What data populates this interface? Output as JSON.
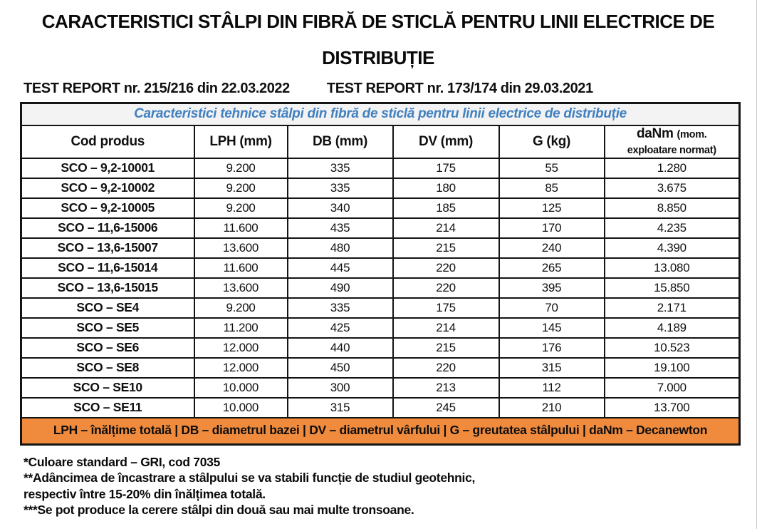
{
  "header": {
    "title_line1": "CARACTERISTICI STÂLPI DIN FIBRĂ DE STICLĂ PENTRU LINII ELECTRICE DE",
    "title_line2": "DISTRIBUȚIE",
    "report_left": "TEST REPORT nr. 215/216 din 22.03.2022",
    "report_right": "TEST REPORT nr. 173/174 din 29.03.2021"
  },
  "table": {
    "caption": "Caracteristici tehnice stâlpi din fibră de sticlă pentru linii electrice de distribuție",
    "columns": [
      "Cod produs",
      "LPH (mm)",
      "DB (mm)",
      "DV (mm)",
      "G (kg)"
    ],
    "danm_header": {
      "main": "daNm",
      "unit_line1": "(mom.",
      "unit_line2": "exploatare normat)"
    },
    "rows": [
      [
        "SCO – 9,2-10001",
        "9.200",
        "335",
        "175",
        "55",
        "1.280"
      ],
      [
        "SCO – 9,2-10002",
        "9.200",
        "335",
        "180",
        "85",
        "3.675"
      ],
      [
        "SCO – 9,2-10005",
        "9.200",
        "340",
        "185",
        "125",
        "8.850"
      ],
      [
        "SCO – 11,6-15006",
        "11.600",
        "435",
        "214",
        "170",
        "4.235"
      ],
      [
        "SCO – 13,6-15007",
        "13.600",
        "480",
        "215",
        "240",
        "4.390"
      ],
      [
        "SCO – 11,6-15014",
        "11.600",
        "445",
        "220",
        "265",
        "13.080"
      ],
      [
        "SCO – 13,6-15015",
        "13.600",
        "490",
        "220",
        "395",
        "15.850"
      ],
      [
        "SCO – SE4",
        "9.200",
        "335",
        "175",
        "70",
        "2.171"
      ],
      [
        "SCO – SE5",
        "11.200",
        "425",
        "214",
        "145",
        "4.189"
      ],
      [
        "SCO – SE6",
        "12.000",
        "440",
        "215",
        "176",
        "10.523"
      ],
      [
        "SCO – SE8",
        "12.000",
        "450",
        "220",
        "315",
        "19.100"
      ],
      [
        "SCO – SE10",
        "10.000",
        "300",
        "213",
        "112",
        "7.000"
      ],
      [
        "SCO – SE11",
        "10.000",
        "315",
        "245",
        "210",
        "13.700"
      ]
    ],
    "legend": "LPH – înălțime totală | DB – diametrul bazei | DV – diametrul vârfului | G – greutatea stâlpului | daNm – Decanewton"
  },
  "footnotes": {
    "lines": [
      "*Culoare standard – GRI, cod 7035",
      "**Adâncimea de încastrare a stâlpului se va stabili funcție de studiul geotehnic,",
      "respectiv între 15-20% din înălțimea totală.",
      "***Se pot produce la cerere stâlpi din două sau mai multe tronsoane."
    ]
  },
  "colors": {
    "accent_blue": "#4180c0",
    "legend_orange": "#f08b3e",
    "caption_bg": "#f3f3f3",
    "line_black": "#141414"
  }
}
